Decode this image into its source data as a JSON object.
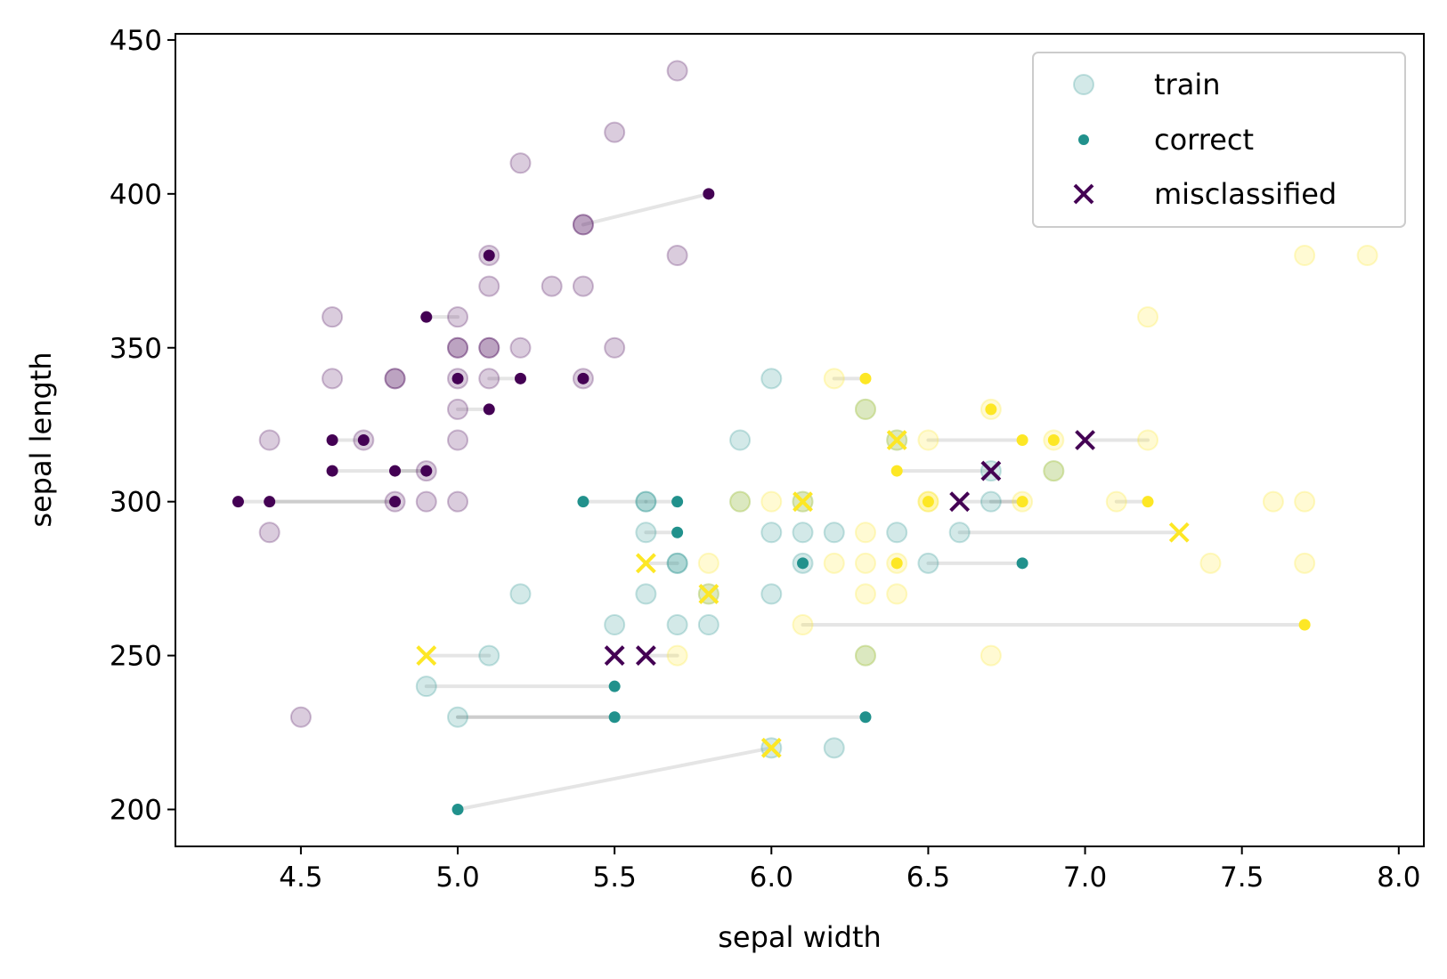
{
  "chart_data": {
    "type": "scatter",
    "xlabel": "sepal width",
    "ylabel": "sepal length",
    "xlim": [
      4.1,
      8.08
    ],
    "ylim": [
      188,
      452
    ],
    "xticks": [
      4.5,
      5.0,
      5.5,
      6.0,
      6.5,
      7.0,
      7.5,
      8.0
    ],
    "xtick_labels": [
      "4.5",
      "5.0",
      "5.5",
      "6.0",
      "6.5",
      "7.0",
      "7.5",
      "8.0"
    ],
    "yticks": [
      200,
      250,
      300,
      350,
      400,
      450
    ],
    "ytick_labels": [
      "200",
      "250",
      "300",
      "350",
      "400",
      "450"
    ],
    "grid": false,
    "legend": {
      "placement": "top-right",
      "entries": [
        {
          "label": "train",
          "marker": "circle-faded"
        },
        {
          "label": "correct",
          "marker": "dot"
        },
        {
          "label": "misclassified",
          "marker": "x"
        }
      ]
    },
    "class_colors": {
      "0": "#440154",
      "1": "#21918c",
      "2": "#fde725"
    },
    "train": [
      {
        "x": 5.7,
        "y": 440,
        "c": 0
      },
      {
        "x": 5.5,
        "y": 420,
        "c": 0
      },
      {
        "x": 5.2,
        "y": 410,
        "c": 0
      },
      {
        "x": 5.4,
        "y": 390,
        "c": 0
      },
      {
        "x": 5.4,
        "y": 390,
        "c": 0
      },
      {
        "x": 5.1,
        "y": 380,
        "c": 0
      },
      {
        "x": 5.7,
        "y": 380,
        "c": 0
      },
      {
        "x": 5.1,
        "y": 370,
        "c": 0
      },
      {
        "x": 5.3,
        "y": 370,
        "c": 0
      },
      {
        "x": 5.4,
        "y": 370,
        "c": 0
      },
      {
        "x": 4.6,
        "y": 360,
        "c": 0
      },
      {
        "x": 5.0,
        "y": 360,
        "c": 0
      },
      {
        "x": 5.0,
        "y": 350,
        "c": 0
      },
      {
        "x": 5.0,
        "y": 350,
        "c": 0
      },
      {
        "x": 5.1,
        "y": 350,
        "c": 0
      },
      {
        "x": 5.1,
        "y": 350,
        "c": 0
      },
      {
        "x": 5.2,
        "y": 350,
        "c": 0
      },
      {
        "x": 5.5,
        "y": 350,
        "c": 0
      },
      {
        "x": 4.6,
        "y": 340,
        "c": 0
      },
      {
        "x": 4.8,
        "y": 340,
        "c": 0
      },
      {
        "x": 4.8,
        "y": 340,
        "c": 0
      },
      {
        "x": 5.0,
        "y": 340,
        "c": 0
      },
      {
        "x": 5.1,
        "y": 340,
        "c": 0
      },
      {
        "x": 5.4,
        "y": 340,
        "c": 0
      },
      {
        "x": 5.0,
        "y": 330,
        "c": 0
      },
      {
        "x": 4.4,
        "y": 320,
        "c": 0
      },
      {
        "x": 4.7,
        "y": 320,
        "c": 0
      },
      {
        "x": 5.0,
        "y": 320,
        "c": 0
      },
      {
        "x": 4.9,
        "y": 310,
        "c": 0
      },
      {
        "x": 4.8,
        "y": 300,
        "c": 0
      },
      {
        "x": 4.9,
        "y": 300,
        "c": 0
      },
      {
        "x": 5.0,
        "y": 300,
        "c": 0
      },
      {
        "x": 4.4,
        "y": 290,
        "c": 0
      },
      {
        "x": 4.5,
        "y": 230,
        "c": 0
      },
      {
        "x": 6.0,
        "y": 340,
        "c": 1
      },
      {
        "x": 6.3,
        "y": 330,
        "c": 1
      },
      {
        "x": 5.9,
        "y": 320,
        "c": 1
      },
      {
        "x": 6.4,
        "y": 320,
        "c": 1
      },
      {
        "x": 6.7,
        "y": 310,
        "c": 1
      },
      {
        "x": 6.9,
        "y": 310,
        "c": 1
      },
      {
        "x": 5.6,
        "y": 300,
        "c": 1
      },
      {
        "x": 5.6,
        "y": 300,
        "c": 1
      },
      {
        "x": 5.9,
        "y": 300,
        "c": 1
      },
      {
        "x": 6.1,
        "y": 300,
        "c": 1
      },
      {
        "x": 6.7,
        "y": 300,
        "c": 1
      },
      {
        "x": 5.6,
        "y": 290,
        "c": 1
      },
      {
        "x": 6.0,
        "y": 290,
        "c": 1
      },
      {
        "x": 6.1,
        "y": 290,
        "c": 1
      },
      {
        "x": 6.2,
        "y": 290,
        "c": 1
      },
      {
        "x": 6.4,
        "y": 290,
        "c": 1
      },
      {
        "x": 6.6,
        "y": 290,
        "c": 1
      },
      {
        "x": 5.7,
        "y": 280,
        "c": 1
      },
      {
        "x": 5.7,
        "y": 280,
        "c": 1
      },
      {
        "x": 6.1,
        "y": 280,
        "c": 1
      },
      {
        "x": 6.5,
        "y": 280,
        "c": 1
      },
      {
        "x": 5.2,
        "y": 270,
        "c": 1
      },
      {
        "x": 5.6,
        "y": 270,
        "c": 1
      },
      {
        "x": 5.8,
        "y": 270,
        "c": 1
      },
      {
        "x": 6.0,
        "y": 270,
        "c": 1
      },
      {
        "x": 5.5,
        "y": 260,
        "c": 1
      },
      {
        "x": 5.7,
        "y": 260,
        "c": 1
      },
      {
        "x": 5.8,
        "y": 260,
        "c": 1
      },
      {
        "x": 5.1,
        "y": 250,
        "c": 1
      },
      {
        "x": 6.3,
        "y": 250,
        "c": 1
      },
      {
        "x": 4.9,
        "y": 240,
        "c": 1
      },
      {
        "x": 5.0,
        "y": 230,
        "c": 1
      },
      {
        "x": 6.0,
        "y": 220,
        "c": 1
      },
      {
        "x": 6.2,
        "y": 220,
        "c": 1
      },
      {
        "x": 7.7,
        "y": 380,
        "c": 2
      },
      {
        "x": 7.9,
        "y": 380,
        "c": 2
      },
      {
        "x": 7.2,
        "y": 360,
        "c": 2
      },
      {
        "x": 6.2,
        "y": 340,
        "c": 2
      },
      {
        "x": 6.3,
        "y": 330,
        "c": 2
      },
      {
        "x": 6.7,
        "y": 330,
        "c": 2
      },
      {
        "x": 6.4,
        "y": 320,
        "c": 2
      },
      {
        "x": 6.5,
        "y": 320,
        "c": 2
      },
      {
        "x": 6.9,
        "y": 320,
        "c": 2
      },
      {
        "x": 7.2,
        "y": 320,
        "c": 2
      },
      {
        "x": 6.9,
        "y": 310,
        "c": 2
      },
      {
        "x": 5.9,
        "y": 300,
        "c": 2
      },
      {
        "x": 6.0,
        "y": 300,
        "c": 2
      },
      {
        "x": 6.1,
        "y": 300,
        "c": 2
      },
      {
        "x": 6.5,
        "y": 300,
        "c": 2
      },
      {
        "x": 6.5,
        "y": 300,
        "c": 2
      },
      {
        "x": 6.8,
        "y": 300,
        "c": 2
      },
      {
        "x": 7.1,
        "y": 300,
        "c": 2
      },
      {
        "x": 7.6,
        "y": 300,
        "c": 2
      },
      {
        "x": 7.7,
        "y": 300,
        "c": 2
      },
      {
        "x": 6.3,
        "y": 290,
        "c": 2
      },
      {
        "x": 5.8,
        "y": 280,
        "c": 2
      },
      {
        "x": 6.2,
        "y": 280,
        "c": 2
      },
      {
        "x": 6.3,
        "y": 280,
        "c": 2
      },
      {
        "x": 6.4,
        "y": 280,
        "c": 2
      },
      {
        "x": 7.4,
        "y": 280,
        "c": 2
      },
      {
        "x": 7.7,
        "y": 280,
        "c": 2
      },
      {
        "x": 5.8,
        "y": 270,
        "c": 2
      },
      {
        "x": 6.3,
        "y": 270,
        "c": 2
      },
      {
        "x": 6.4,
        "y": 270,
        "c": 2
      },
      {
        "x": 6.1,
        "y": 260,
        "c": 2
      },
      {
        "x": 5.7,
        "y": 250,
        "c": 2
      },
      {
        "x": 6.3,
        "y": 250,
        "c": 2
      },
      {
        "x": 6.7,
        "y": 250,
        "c": 2
      }
    ],
    "correct": [
      {
        "x": 5.8,
        "y": 400,
        "c": 0,
        "nx": 5.4,
        "ny": 390
      },
      {
        "x": 5.1,
        "y": 380,
        "c": 0
      },
      {
        "x": 4.9,
        "y": 360,
        "c": 0,
        "nx": 5.0,
        "ny": 360
      },
      {
        "x": 5.0,
        "y": 340,
        "c": 0
      },
      {
        "x": 5.2,
        "y": 340,
        "c": 0,
        "nx": 5.1,
        "ny": 340
      },
      {
        "x": 5.4,
        "y": 340,
        "c": 0
      },
      {
        "x": 5.1,
        "y": 330,
        "c": 0,
        "nx": 5.0,
        "ny": 330
      },
      {
        "x": 4.6,
        "y": 320,
        "c": 0,
        "nx": 4.7,
        "ny": 320
      },
      {
        "x": 4.7,
        "y": 320,
        "c": 0
      },
      {
        "x": 4.6,
        "y": 310,
        "c": 0,
        "nx": 4.9,
        "ny": 310
      },
      {
        "x": 4.8,
        "y": 310,
        "c": 0,
        "nx": 4.9,
        "ny": 310
      },
      {
        "x": 4.9,
        "y": 310,
        "c": 0
      },
      {
        "x": 4.3,
        "y": 300,
        "c": 0,
        "nx": 4.8,
        "ny": 300
      },
      {
        "x": 4.4,
        "y": 300,
        "c": 0,
        "nx": 4.8,
        "ny": 300
      },
      {
        "x": 4.8,
        "y": 300,
        "c": 0
      },
      {
        "x": 5.4,
        "y": 300,
        "c": 1,
        "nx": 5.6,
        "ny": 300
      },
      {
        "x": 5.7,
        "y": 300,
        "c": 1,
        "nx": 5.6,
        "ny": 300
      },
      {
        "x": 5.7,
        "y": 290,
        "c": 1,
        "nx": 5.6,
        "ny": 290
      },
      {
        "x": 6.1,
        "y": 280,
        "c": 1
      },
      {
        "x": 6.8,
        "y": 280,
        "c": 1,
        "nx": 6.5,
        "ny": 280
      },
      {
        "x": 5.5,
        "y": 240,
        "c": 1,
        "nx": 4.9,
        "ny": 240
      },
      {
        "x": 5.5,
        "y": 230,
        "c": 1,
        "nx": 5.0,
        "ny": 230
      },
      {
        "x": 6.3,
        "y": 230,
        "c": 1,
        "nx": 5.0,
        "ny": 230
      },
      {
        "x": 5.0,
        "y": 200,
        "c": 1,
        "nx": 6.0,
        "ny": 220
      },
      {
        "x": 6.3,
        "y": 340,
        "c": 2,
        "nx": 6.2,
        "ny": 340
      },
      {
        "x": 6.7,
        "y": 330,
        "c": 2
      },
      {
        "x": 6.8,
        "y": 320,
        "c": 2,
        "nx": 6.5,
        "ny": 320
      },
      {
        "x": 6.9,
        "y": 320,
        "c": 2
      },
      {
        "x": 6.4,
        "y": 310,
        "c": 2,
        "nx": 6.7,
        "ny": 310
      },
      {
        "x": 6.5,
        "y": 300,
        "c": 2
      },
      {
        "x": 6.8,
        "y": 300,
        "c": 2,
        "nx": 6.7,
        "ny": 300
      },
      {
        "x": 7.2,
        "y": 300,
        "c": 2,
        "nx": 7.1,
        "ny": 300
      },
      {
        "x": 6.4,
        "y": 280,
        "c": 2
      },
      {
        "x": 7.7,
        "y": 260,
        "c": 2,
        "nx": 6.1,
        "ny": 260
      }
    ],
    "misclassified": [
      {
        "x": 7.0,
        "y": 320,
        "c": 0,
        "nx": 7.2,
        "ny": 320
      },
      {
        "x": 6.7,
        "y": 310,
        "c": 0,
        "nx": 6.7,
        "ny": 310
      },
      {
        "x": 6.6,
        "y": 300,
        "c": 0,
        "nx": 6.8,
        "ny": 300
      },
      {
        "x": 5.5,
        "y": 250,
        "c": 0,
        "nx": 5.5,
        "ny": 250
      },
      {
        "x": 5.6,
        "y": 250,
        "c": 0,
        "nx": 5.7,
        "ny": 250
      },
      {
        "x": 6.4,
        "y": 320,
        "c": 2,
        "nx": 6.4,
        "ny": 320
      },
      {
        "x": 6.1,
        "y": 300,
        "c": 2,
        "nx": 6.1,
        "ny": 300
      },
      {
        "x": 7.3,
        "y": 290,
        "c": 2,
        "nx": 6.6,
        "ny": 290
      },
      {
        "x": 5.6,
        "y": 280,
        "c": 2,
        "nx": 5.7,
        "ny": 280
      },
      {
        "x": 5.8,
        "y": 270,
        "c": 2,
        "nx": 5.8,
        "ny": 270
      },
      {
        "x": 4.9,
        "y": 250,
        "c": 2,
        "nx": 5.1,
        "ny": 250
      },
      {
        "x": 6.0,
        "y": 220,
        "c": 2,
        "nx": 6.0,
        "ny": 220
      }
    ]
  }
}
